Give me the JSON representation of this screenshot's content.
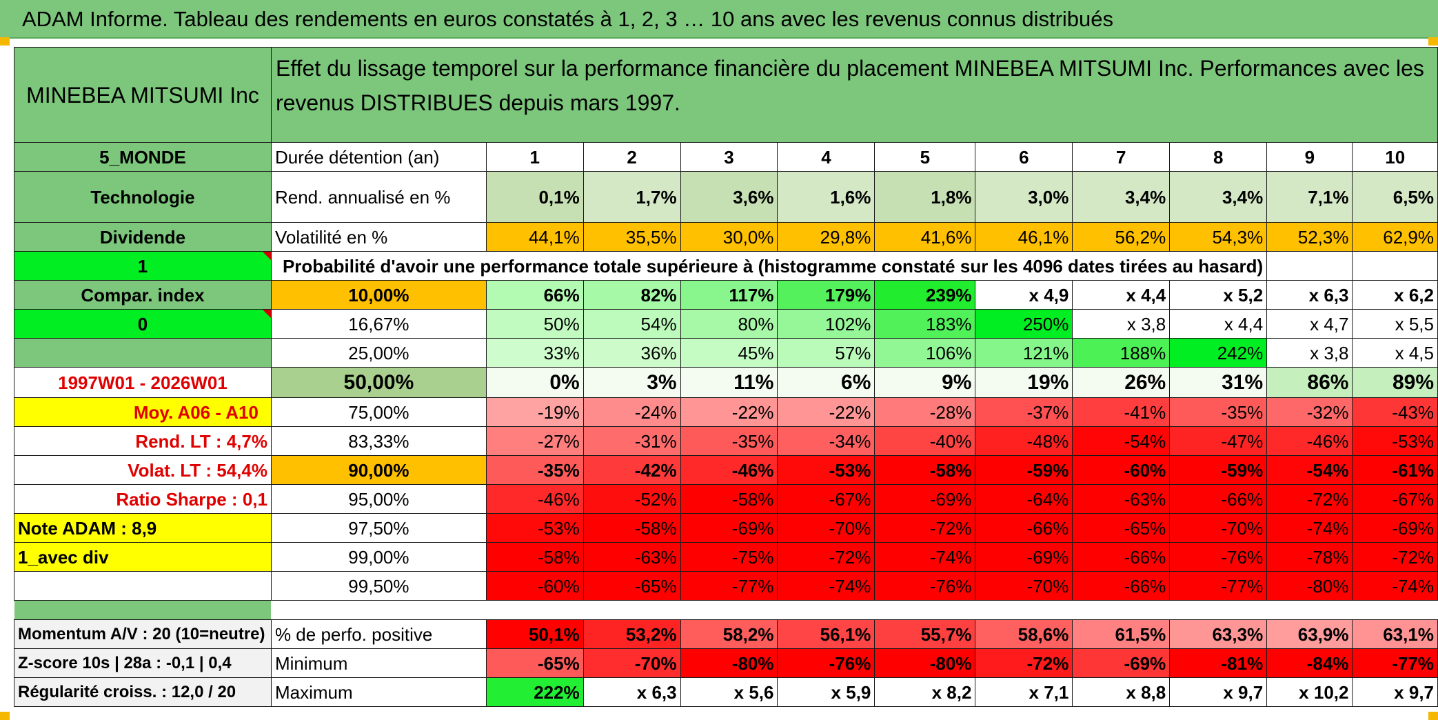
{
  "title": "ADAM Informe. Tableau des rendements en euros constatés à 1, 2, 3 … 10 ans avec les revenus connus distribués",
  "company": "MINEBEA MITSUMI Inc",
  "header_text": "Effet du lissage temporel sur la performance financière du placement MINEBEA MITSUMI Inc. Performances avec les revenus DISTRIBUES depuis mars 1997.",
  "left_labels": {
    "zone": "5_MONDE",
    "sector": "Technologie",
    "dividend": "Dividende",
    "one": "1",
    "compar": "Compar. index",
    "zero": "0",
    "period": "1997W01 - 2026W01",
    "moy": "Moy. A06 - A10",
    "rend_lt": "Rend. LT :   4,7%",
    "volat_lt": "Volat. LT :   54,4%",
    "sharpe": "Ratio Sharpe :    0,1",
    "note": "Note ADAM : 8,9",
    "avec_div": "1_avec div",
    "momentum": "Momentum A/V : 20 (10=neutre)",
    "zscore": "Z-score 10s | 28a : -0,1 | 0,4",
    "regularite": "Régularité croiss. : 12,0 / 20"
  },
  "duration_label": "Durée détention (an)",
  "years": [
    "1",
    "2",
    "3",
    "4",
    "5",
    "6",
    "7",
    "8",
    "9",
    "10"
  ],
  "rend_label": "Rend. annualisé en %",
  "rend": [
    "0,1%",
    "1,7%",
    "3,6%",
    "1,6%",
    "1,8%",
    "3,0%",
    "3,4%",
    "3,4%",
    "7,1%",
    "6,5%"
  ],
  "vol_label": "Volatilité en %",
  "vol": [
    "44,1%",
    "35,5%",
    "30,0%",
    "29,8%",
    "41,6%",
    "46,1%",
    "56,2%",
    "54,3%",
    "52,3%",
    "62,9%"
  ],
  "prob_label": "Probabilité d'avoir une performance totale supérieure à (histogramme constaté sur les 4096 dates tirées au hasard)",
  "quantiles": [
    {
      "p": "10,00%",
      "v": [
        "66%",
        "82%",
        "117%",
        "179%",
        "239%",
        "x 4,9",
        "x 4,4",
        "x 5,2",
        "x 6,3",
        "x 6,2"
      ]
    },
    {
      "p": "16,67%",
      "v": [
        "50%",
        "54%",
        "80%",
        "102%",
        "183%",
        "250%",
        "x 3,8",
        "x 4,4",
        "x 4,7",
        "x 5,5"
      ]
    },
    {
      "p": "25,00%",
      "v": [
        "33%",
        "36%",
        "45%",
        "57%",
        "106%",
        "121%",
        "188%",
        "242%",
        "x 3,8",
        "x 4,5"
      ]
    },
    {
      "p": "50,00%",
      "v": [
        "0%",
        "3%",
        "11%",
        "6%",
        "9%",
        "19%",
        "26%",
        "31%",
        "86%",
        "89%"
      ]
    },
    {
      "p": "75,00%",
      "v": [
        "-19%",
        "-24%",
        "-22%",
        "-22%",
        "-28%",
        "-37%",
        "-41%",
        "-35%",
        "-32%",
        "-43%"
      ]
    },
    {
      "p": "83,33%",
      "v": [
        "-27%",
        "-31%",
        "-35%",
        "-34%",
        "-40%",
        "-48%",
        "-54%",
        "-47%",
        "-46%",
        "-53%"
      ]
    },
    {
      "p": "90,00%",
      "v": [
        "-35%",
        "-42%",
        "-46%",
        "-53%",
        "-58%",
        "-59%",
        "-60%",
        "-59%",
        "-54%",
        "-61%"
      ]
    },
    {
      "p": "95,00%",
      "v": [
        "-46%",
        "-52%",
        "-58%",
        "-67%",
        "-69%",
        "-64%",
        "-63%",
        "-66%",
        "-72%",
        "-67%"
      ]
    },
    {
      "p": "97,50%",
      "v": [
        "-53%",
        "-58%",
        "-69%",
        "-70%",
        "-72%",
        "-66%",
        "-65%",
        "-70%",
        "-74%",
        "-69%"
      ]
    },
    {
      "p": "99,00%",
      "v": [
        "-58%",
        "-63%",
        "-75%",
        "-72%",
        "-74%",
        "-69%",
        "-66%",
        "-76%",
        "-78%",
        "-72%"
      ]
    },
    {
      "p": "99,50%",
      "v": [
        "-60%",
        "-65%",
        "-77%",
        "-74%",
        "-76%",
        "-70%",
        "-66%",
        "-77%",
        "-80%",
        "-74%"
      ]
    }
  ],
  "pos_label": "% de perfo. positive",
  "pos": [
    "50,1%",
    "53,2%",
    "58,2%",
    "56,1%",
    "55,7%",
    "58,6%",
    "61,5%",
    "63,3%",
    "63,9%",
    "63,1%"
  ],
  "min_label": "Minimum",
  "min": [
    "-65%",
    "-70%",
    "-80%",
    "-76%",
    "-80%",
    "-72%",
    "-69%",
    "-81%",
    "-84%",
    "-77%"
  ],
  "max_label": "Maximum",
  "max": [
    "222%",
    "x 6,3",
    "x 5,6",
    "x 5,9",
    "x 8,2",
    "x 7,1",
    "x 8,8",
    "x 9,7",
    "x 10,2",
    "x 9,7"
  ],
  "colors": {
    "title_green": "#7cc77c",
    "light_green": "#c6e0b4",
    "orange": "#ffc000",
    "bright_green": "#00ee22",
    "yellow": "#ffff00",
    "red_text": "#e00000"
  }
}
